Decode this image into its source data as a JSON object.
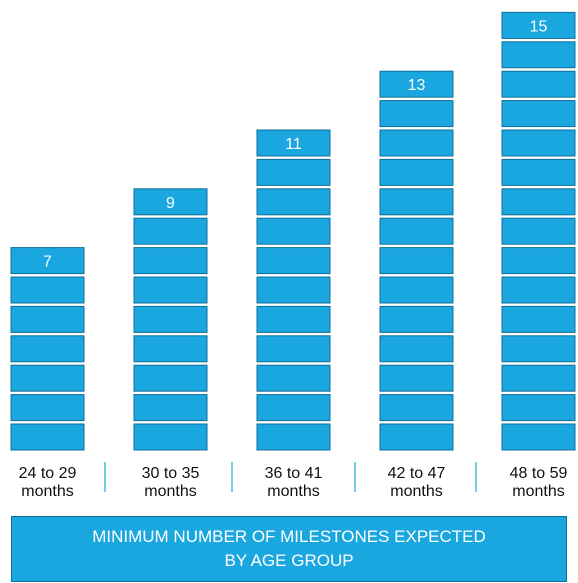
{
  "chart_data": {
    "type": "bar",
    "categories": [
      [
        "24 to 29",
        "months"
      ],
      [
        "30 to 35",
        "months"
      ],
      [
        "36 to 41",
        "months"
      ],
      [
        "42 to 47",
        "months"
      ],
      [
        "48 to 59",
        "months"
      ]
    ],
    "values": [
      7,
      9,
      11,
      13,
      15
    ],
    "unit_display": "stacked blocks, one block per milestone",
    "title_lines": [
      "MINIMUM NUMBER OF MILESTONES EXPECTED",
      "BY AGE GROUP"
    ],
    "colors": {
      "block_fill": "#1aa7e0",
      "block_border": "#0e6f98",
      "label_text": "#ffffff",
      "category_text": "#111111"
    }
  }
}
